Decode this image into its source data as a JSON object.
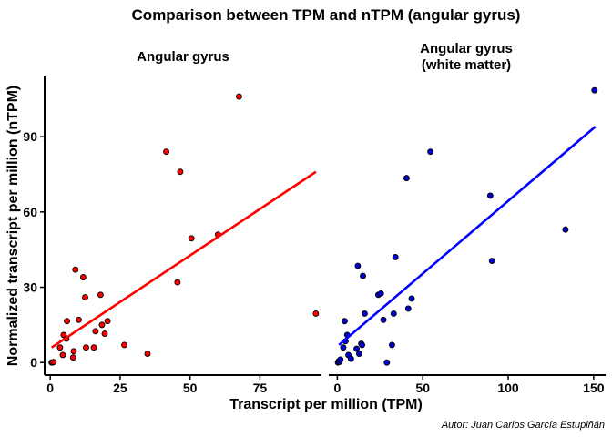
{
  "chart_data": {
    "type": "scatter",
    "title": "Comparison between TPM and nTPM (angular gyrus)",
    "xlabel": "Transcript per million (TPM)",
    "ylabel": "Normalized transcript per million (nTPM)",
    "caption": "Autor: Juan Carlos García Estupiñán",
    "y_ticks": [
      "0",
      "30",
      "60",
      "90"
    ],
    "y_tick_values": [
      0,
      30,
      60,
      90
    ],
    "ylim": [
      -5,
      114
    ],
    "grid": false,
    "legend": "none",
    "panels": [
      {
        "title_lines": [
          "Angular gyrus"
        ],
        "color": "#FF0000",
        "line_color": "#FF0000",
        "xlim": [
          -2,
          97
        ],
        "x_ticks": [
          "0",
          "25",
          "50",
          "75"
        ],
        "x_tick_values": [
          0,
          25,
          50,
          75
        ],
        "trend": [
          [
            0.5,
            6
          ],
          [
            95,
            76
          ]
        ],
        "points": [
          [
            0.5,
            0
          ],
          [
            0.8,
            0
          ],
          [
            1.2,
            0.2
          ],
          [
            3.5,
            6
          ],
          [
            4.5,
            3
          ],
          [
            4.8,
            11
          ],
          [
            5.8,
            9.5
          ],
          [
            6.0,
            16.5
          ],
          [
            8.2,
            2
          ],
          [
            8.4,
            4.5
          ],
          [
            9.0,
            37
          ],
          [
            10.2,
            17
          ],
          [
            11.8,
            34
          ],
          [
            12.5,
            26
          ],
          [
            12.8,
            6
          ],
          [
            15.6,
            6
          ],
          [
            16.2,
            12.5
          ],
          [
            18.0,
            27
          ],
          [
            18.5,
            15
          ],
          [
            19.5,
            11.5
          ],
          [
            20.5,
            16.5
          ],
          [
            26.5,
            7
          ],
          [
            34.8,
            3.5
          ],
          [
            41.5,
            84
          ],
          [
            45.5,
            32
          ],
          [
            46.5,
            76
          ],
          [
            50.5,
            49.5
          ],
          [
            60.0,
            51
          ],
          [
            67.5,
            106
          ],
          [
            95,
            19.5
          ]
        ]
      },
      {
        "title_lines": [
          "Angular gyrus",
          "(white matter)"
        ],
        "color": "#0000CD",
        "line_color": "#0000FF",
        "xlim": [
          -5,
          157
        ],
        "x_ticks": [
          "0",
          "50",
          "100",
          "150"
        ],
        "x_tick_values": [
          0,
          50,
          100,
          150
        ],
        "trend": [
          [
            1,
            7
          ],
          [
            151,
            94
          ]
        ],
        "points": [
          [
            0.4,
            0
          ],
          [
            0.8,
            0.5
          ],
          [
            1.3,
            0.3
          ],
          [
            1.8,
            1.2
          ],
          [
            3.5,
            6
          ],
          [
            4.3,
            16.5
          ],
          [
            4.8,
            8.5
          ],
          [
            5.8,
            11
          ],
          [
            6.5,
            3
          ],
          [
            8.0,
            1.5
          ],
          [
            11.3,
            5.5
          ],
          [
            12.0,
            38.5
          ],
          [
            12.8,
            3.5
          ],
          [
            14.0,
            7.5
          ],
          [
            14.5,
            7
          ],
          [
            15.0,
            34.5
          ],
          [
            16.0,
            19.5
          ],
          [
            24.0,
            27
          ],
          [
            25.5,
            27.5
          ],
          [
            27.0,
            17
          ],
          [
            29.0,
            0
          ],
          [
            32.0,
            7
          ],
          [
            33.0,
            19.5
          ],
          [
            34.0,
            42
          ],
          [
            40.5,
            73.5
          ],
          [
            41.5,
            21.5
          ],
          [
            43.5,
            25.5
          ],
          [
            54.5,
            84
          ],
          [
            89.5,
            66.5
          ],
          [
            90.5,
            40.5
          ],
          [
            133.5,
            53
          ],
          [
            150.5,
            108.5
          ]
        ]
      }
    ]
  }
}
